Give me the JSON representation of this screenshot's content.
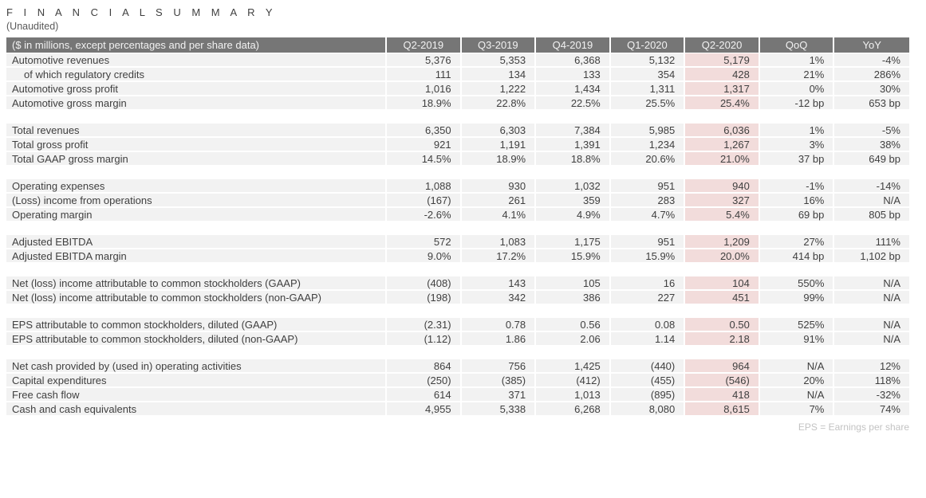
{
  "title": "F I N A N C I A L   S U M M A R Y",
  "subtitle": "(Unaudited)",
  "footnote": "EPS = Earnings per share",
  "colors": {
    "header_bg": "#767676",
    "header_text": "#f2f2f2",
    "row_bg": "#f2f2f2",
    "highlight_bg": "#f2dcdb",
    "text": "#404040",
    "footnote_text": "#c3c3c3"
  },
  "table": {
    "header": [
      "($ in millions, except percentages and per share data)",
      "Q2-2019",
      "Q3-2019",
      "Q4-2019",
      "Q1-2020",
      "Q2-2020",
      "QoQ",
      "YoY"
    ],
    "highlight_column": "Q2-2020",
    "highlight_value_index": 4,
    "sections": [
      {
        "rows": [
          {
            "label": "Automotive revenues",
            "indent": false,
            "values": [
              "5,376",
              "5,353",
              "6,368",
              "5,132",
              "5,179",
              "1%",
              "-4%"
            ]
          },
          {
            "label": "of which regulatory credits",
            "indent": true,
            "values": [
              "111",
              "134",
              "133",
              "354",
              "428",
              "21%",
              "286%"
            ]
          },
          {
            "label": "Automotive gross profit",
            "indent": false,
            "values": [
              "1,016",
              "1,222",
              "1,434",
              "1,311",
              "1,317",
              "0%",
              "30%"
            ]
          },
          {
            "label": "Automotive gross margin",
            "indent": false,
            "values": [
              "18.9%",
              "22.8%",
              "22.5%",
              "25.5%",
              "25.4%",
              "-12 bp",
              "653 bp"
            ]
          }
        ]
      },
      {
        "rows": [
          {
            "label": "Total revenues",
            "indent": false,
            "values": [
              "6,350",
              "6,303",
              "7,384",
              "5,985",
              "6,036",
              "1%",
              "-5%"
            ]
          },
          {
            "label": "Total gross profit",
            "indent": false,
            "values": [
              "921",
              "1,191",
              "1,391",
              "1,234",
              "1,267",
              "3%",
              "38%"
            ]
          },
          {
            "label": "Total GAAP gross margin",
            "indent": false,
            "values": [
              "14.5%",
              "18.9%",
              "18.8%",
              "20.6%",
              "21.0%",
              "37 bp",
              "649 bp"
            ]
          }
        ]
      },
      {
        "rows": [
          {
            "label": "Operating expenses",
            "indent": false,
            "values": [
              "1,088",
              "930",
              "1,032",
              "951",
              "940",
              "-1%",
              "-14%"
            ]
          },
          {
            "label": "(Loss) income from operations",
            "indent": false,
            "values": [
              "(167)",
              "261",
              "359",
              "283",
              "327",
              "16%",
              "N/A"
            ]
          },
          {
            "label": "Operating margin",
            "indent": false,
            "values": [
              "-2.6%",
              "4.1%",
              "4.9%",
              "4.7%",
              "5.4%",
              "69 bp",
              "805 bp"
            ]
          }
        ]
      },
      {
        "rows": [
          {
            "label": "Adjusted EBITDA",
            "indent": false,
            "values": [
              "572",
              "1,083",
              "1,175",
              "951",
              "1,209",
              "27%",
              "111%"
            ]
          },
          {
            "label": "Adjusted EBITDA margin",
            "indent": false,
            "values": [
              "9.0%",
              "17.2%",
              "15.9%",
              "15.9%",
              "20.0%",
              "414 bp",
              "1,102 bp"
            ]
          }
        ]
      },
      {
        "rows": [
          {
            "label": "Net (loss) income attributable to common stockholders (GAAP)",
            "indent": false,
            "values": [
              "(408)",
              "143",
              "105",
              "16",
              "104",
              "550%",
              "N/A"
            ]
          },
          {
            "label": "Net (loss) income attributable to common stockholders (non-GAAP)",
            "indent": false,
            "values": [
              "(198)",
              "342",
              "386",
              "227",
              "451",
              "99%",
              "N/A"
            ]
          }
        ]
      },
      {
        "rows": [
          {
            "label": "EPS attributable to common stockholders, diluted (GAAP)",
            "indent": false,
            "values": [
              "(2.31)",
              "0.78",
              "0.56",
              "0.08",
              "0.50",
              "525%",
              "N/A"
            ]
          },
          {
            "label": "EPS attributable to common stockholders, diluted (non-GAAP)",
            "indent": false,
            "values": [
              "(1.12)",
              "1.86",
              "2.06",
              "1.14",
              "2.18",
              "91%",
              "N/A"
            ]
          }
        ]
      },
      {
        "rows": [
          {
            "label": "Net cash provided by (used in) operating activities",
            "indent": false,
            "values": [
              "864",
              "756",
              "1,425",
              "(440)",
              "964",
              "N/A",
              "12%"
            ]
          },
          {
            "label": "Capital expenditures",
            "indent": false,
            "values": [
              "(250)",
              "(385)",
              "(412)",
              "(455)",
              "(546)",
              "20%",
              "118%"
            ]
          },
          {
            "label": "Free cash flow",
            "indent": false,
            "values": [
              "614",
              "371",
              "1,013",
              "(895)",
              "418",
              "N/A",
              "-32%"
            ]
          },
          {
            "label": "Cash and cash equivalents",
            "indent": false,
            "values": [
              "4,955",
              "5,338",
              "6,268",
              "8,080",
              "8,615",
              "7%",
              "74%"
            ]
          }
        ]
      }
    ]
  }
}
